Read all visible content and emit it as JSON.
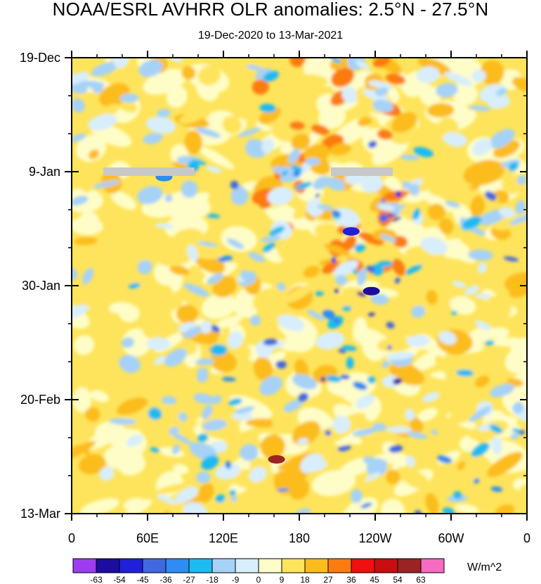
{
  "chart_data": {
    "type": "heatmap",
    "title": "NOAA/ESRL AVHRR OLR anomalies: 2.5°N - 27.5°N",
    "subtitle": "19-Dec-2020 to 13-Mar-2021",
    "x_tick_labels": [
      "0",
      "60E",
      "120E",
      "180",
      "120W",
      "60W",
      "0"
    ],
    "x_tick_values_deg": [
      0,
      60,
      120,
      180,
      240,
      300,
      360
    ],
    "xlim_deg": [
      0,
      360
    ],
    "y_tick_labels": [
      "19-Dec",
      "9-Jan",
      "30-Jan",
      "20-Feb",
      "13-Mar"
    ],
    "y_tick_days": [
      0,
      21,
      42,
      63,
      84
    ],
    "ylim_days": [
      0,
      84
    ],
    "units": "W/m^2",
    "colorbar": {
      "labels": [
        "-63",
        "-54",
        "-45",
        "-36",
        "-27",
        "-18",
        "-9",
        "0",
        "9",
        "18",
        "27",
        "36",
        "45",
        "54",
        "63"
      ],
      "levels": [
        -63,
        -54,
        -45,
        -36,
        -27,
        -18,
        -9,
        0,
        9,
        18,
        27,
        36,
        45,
        54,
        63
      ],
      "colors": [
        "#9e3df0",
        "#1c0d9c",
        "#2020d8",
        "#4268e0",
        "#2e8cf2",
        "#1ebaf2",
        "#a6d2f8",
        "#d8eefc",
        "#fefdc8",
        "#fee45c",
        "#fbbc1c",
        "#fb7c10",
        "#f01010",
        "#c80e0e",
        "#9a2424",
        "#f66cc0"
      ]
    },
    "missing_data": [
      {
        "lon_start": 25,
        "lon_end": 97,
        "day": 21
      },
      {
        "lon_start": 205,
        "lon_end": 254,
        "day": 21
      }
    ],
    "field_description_levels": {
      "background": 9,
      "notable_features": [
        {
          "lon": 73,
          "day": 22,
          "value": -36
        },
        {
          "lon": 221,
          "day": 32,
          "value": -54
        },
        {
          "lon": 237,
          "day": 43,
          "value": -63
        },
        {
          "lon": 162,
          "day": 74,
          "value": 54
        }
      ]
    }
  }
}
